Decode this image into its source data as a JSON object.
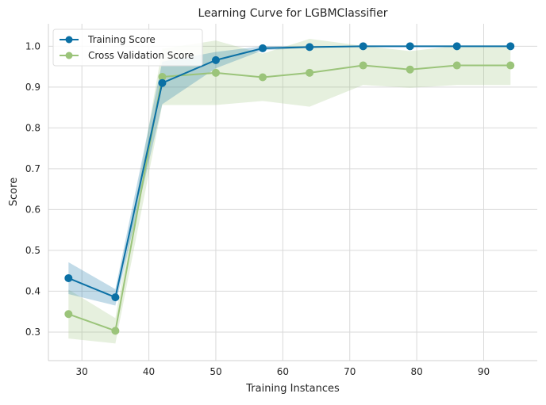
{
  "chart_data": {
    "type": "line",
    "title": "Learning Curve for LGBMClassifier",
    "xlabel": "Training Instances",
    "ylabel": "Score",
    "xlim": [
      25,
      98
    ],
    "ylim": [
      0.23,
      1.055
    ],
    "x_ticks": [
      30,
      40,
      50,
      60,
      70,
      80,
      90
    ],
    "y_ticks": [
      0.3,
      0.4,
      0.5,
      0.6,
      0.7,
      0.8,
      0.9,
      1.0
    ],
    "x_tick_labels": [
      "30",
      "40",
      "50",
      "60",
      "70",
      "80",
      "90"
    ],
    "y_tick_labels": [
      "0.3",
      "0.4",
      "0.5",
      "0.6",
      "0.7",
      "0.8",
      "0.9",
      "1.0"
    ],
    "grid": true,
    "legend_position": "top-left",
    "x": [
      28,
      35,
      42,
      50,
      57,
      64,
      72,
      79,
      86,
      94
    ],
    "series": [
      {
        "name": "Training Score",
        "color": "#0b70a5",
        "band_color": "#0b70a5",
        "values": [
          0.432,
          0.385,
          0.91,
          0.966,
          0.995,
          0.998,
          1.0,
          1.0,
          1.0,
          1.0
        ],
        "lower": [
          0.393,
          0.365,
          0.858,
          0.946,
          0.99,
          0.996,
          1.0,
          1.0,
          1.0,
          1.0
        ],
        "upper": [
          0.471,
          0.405,
          0.962,
          0.986,
          1.0,
          1.0,
          1.0,
          1.0,
          1.0,
          1.0
        ]
      },
      {
        "name": "Cross Validation Score",
        "color": "#9bc47a",
        "band_color": "#9bc47a",
        "values": [
          0.344,
          0.303,
          0.925,
          0.935,
          0.924,
          0.935,
          0.953,
          0.943,
          0.953,
          0.953
        ],
        "lower": [
          0.284,
          0.272,
          0.856,
          0.856,
          0.866,
          0.852,
          0.905,
          0.898,
          0.905,
          0.905
        ],
        "upper": [
          0.404,
          0.334,
          0.994,
          1.014,
          0.982,
          1.018,
          1.001,
          0.988,
          1.001,
          1.001
        ]
      }
    ]
  }
}
